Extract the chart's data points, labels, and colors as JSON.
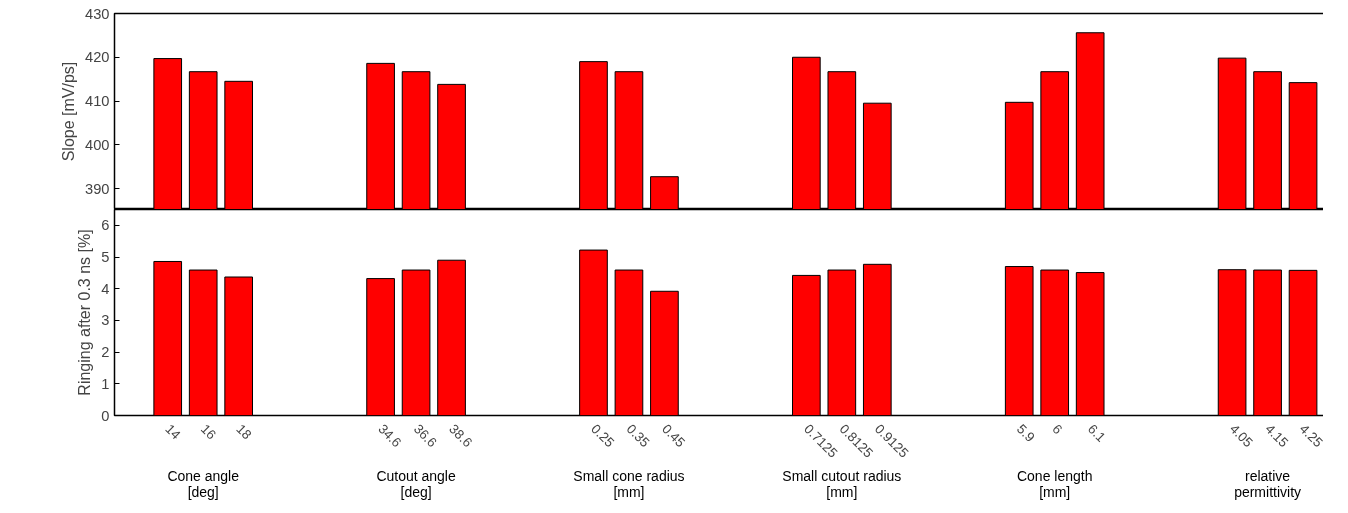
{
  "chart_data": [
    {
      "type": "bar",
      "ylabel": "Slope [mV/ps]",
      "categories": [
        "14",
        "16",
        "18",
        null,
        null,
        null,
        "34.6",
        "36.6",
        "38.6",
        null,
        null,
        null,
        "0.25",
        "0.35",
        "0.45",
        null,
        null,
        null,
        "0.7125",
        "0.8125",
        "0.9125",
        null,
        null,
        null,
        "5.9",
        "6",
        "6.1",
        null,
        null,
        null,
        "4.05",
        "4.15",
        "4.25"
      ],
      "values": [
        419.7,
        416.7,
        414.5,
        null,
        null,
        null,
        418.6,
        416.7,
        413.8,
        null,
        null,
        null,
        419.0,
        416.7,
        392.7,
        null,
        null,
        null,
        420.0,
        416.7,
        409.5,
        null,
        null,
        null,
        409.7,
        416.7,
        425.6,
        null,
        null,
        null,
        419.8,
        416.7,
        414.2
      ],
      "color": "#ff0000",
      "ylim": [
        385.2,
        430
      ],
      "yticks": [
        390,
        400,
        410,
        420,
        430
      ],
      "grid": false,
      "tick_labels": "y"
    },
    {
      "type": "bar",
      "ylabel": "Ringing after 0.3 ns [%]",
      "categories": [
        "14",
        "16",
        "18",
        null,
        null,
        null,
        "34.6",
        "36.6",
        "38.6",
        null,
        null,
        null,
        "0.25",
        "0.35",
        "0.45",
        null,
        null,
        null,
        "0.7125",
        "0.8125",
        "0.9125",
        null,
        null,
        null,
        "5.9",
        "6",
        "6.1",
        null,
        null,
        null,
        "4.05",
        "4.15",
        "4.25"
      ],
      "values": [
        4.86,
        4.59,
        4.37,
        null,
        null,
        null,
        4.32,
        4.59,
        4.9,
        null,
        null,
        null,
        5.22,
        4.59,
        3.92,
        null,
        null,
        null,
        4.42,
        4.59,
        4.77,
        null,
        null,
        null,
        4.7,
        4.59,
        4.51,
        null,
        null,
        null,
        4.6,
        4.59,
        4.58
      ],
      "color": "#ff0000",
      "ylim": [
        0,
        6.5
      ],
      "yticks": [
        0,
        1,
        2,
        3,
        4,
        5,
        6
      ],
      "grid": false,
      "annotations": [
        "Cone angle\n[deg]",
        "Cutout angle\n[deg]",
        "Small cone radius\n[mm]",
        "Small cutout radius\n[mm]",
        "Cone length\n[mm]",
        "relative\npermittivity"
      ]
    }
  ]
}
